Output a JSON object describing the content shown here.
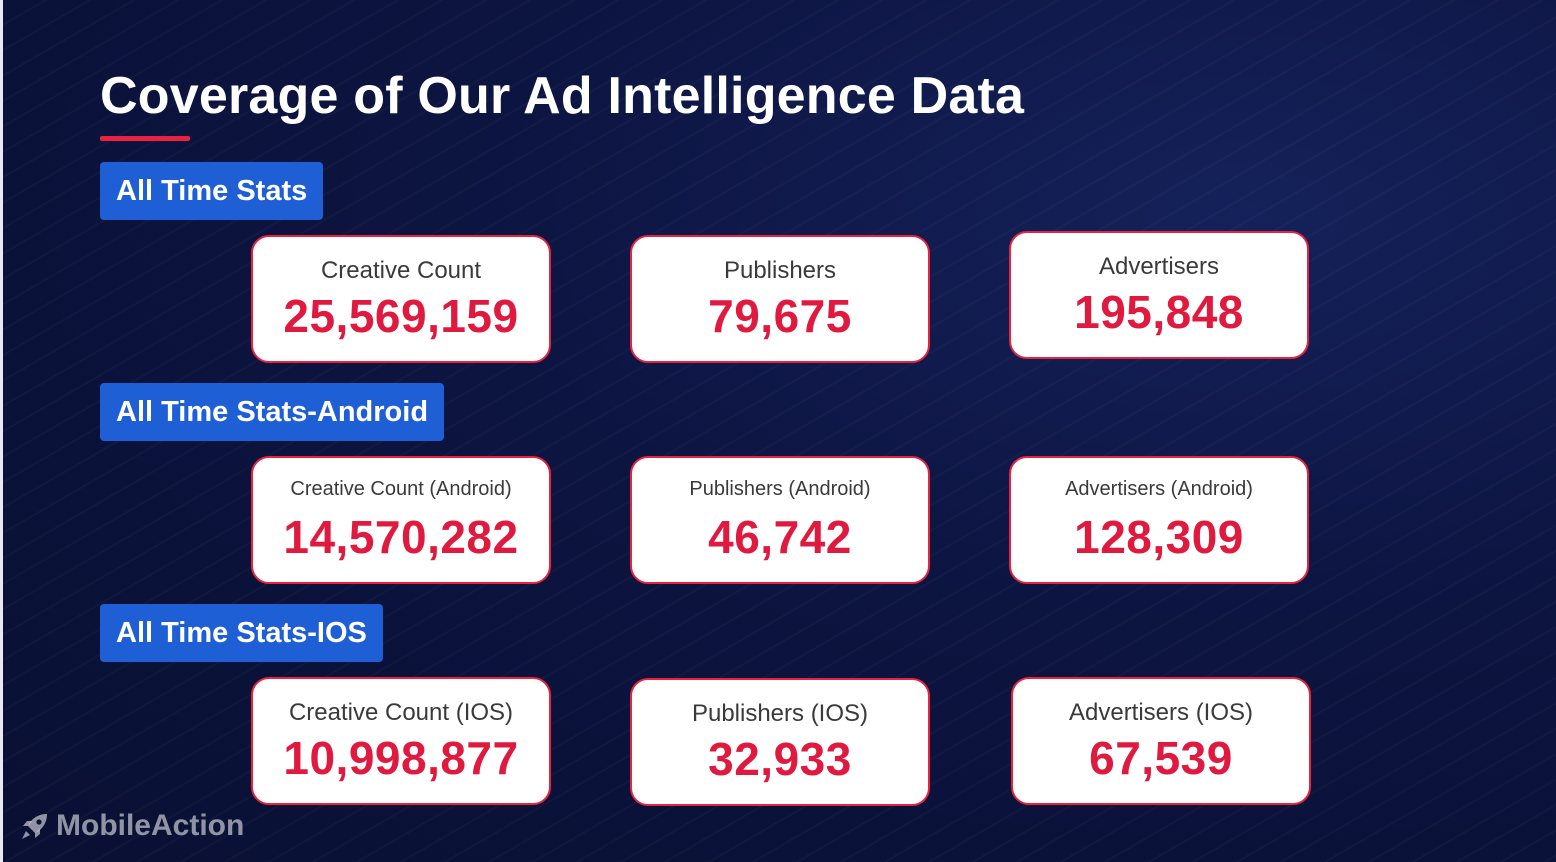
{
  "title": "Coverage of Our Ad Intelligence Data",
  "colors": {
    "accent_red": "#e8223f",
    "label_blue": "#1f5fd6",
    "background": "#0b1238"
  },
  "sections": [
    {
      "label": "All Time Stats",
      "cards": [
        {
          "label": "Creative Count",
          "value": "25,569,159"
        },
        {
          "label": "Publishers",
          "value": "79,675"
        },
        {
          "label": "Advertisers",
          "value": "195,848"
        }
      ]
    },
    {
      "label": "All Time Stats-Android",
      "cards": [
        {
          "label": "Creative Count (Android)",
          "value": "14,570,282"
        },
        {
          "label": "Publishers (Android)",
          "value": "46,742"
        },
        {
          "label": "Advertisers (Android)",
          "value": "128,309"
        }
      ]
    },
    {
      "label": "All Time Stats-IOS",
      "cards": [
        {
          "label": "Creative Count (IOS)",
          "value": "10,998,877"
        },
        {
          "label": "Publishers (IOS)",
          "value": "32,933"
        },
        {
          "label": "Advertisers (IOS)",
          "value": "67,539"
        }
      ]
    }
  ],
  "logo": {
    "text": "MobileAction",
    "icon": "rocket-icon"
  }
}
